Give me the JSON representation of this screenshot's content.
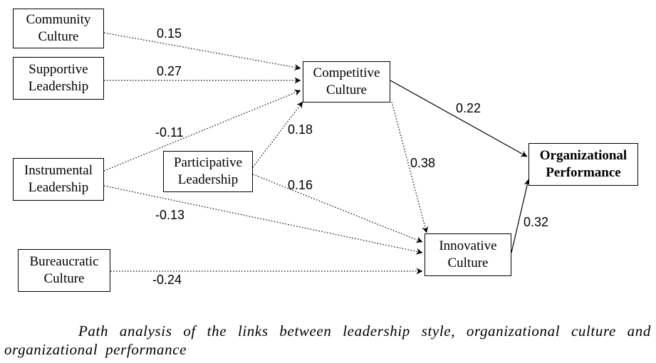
{
  "nodes": {
    "community_culture": "Community\nCulture",
    "supportive_leadership": "Supportive\nLeadership",
    "instrumental_leadership": "Instrumental\nLeadership",
    "bureaucratic_culture": "Bureaucratic\nCulture",
    "participative_leadership": "Participative\nLeadership",
    "competitive_culture": "Competitive\nCulture",
    "innovative_culture": "Innovative\nCulture",
    "organizational_performance": "Organizational\nPerformance"
  },
  "paths": [
    {
      "from": "Community Culture",
      "to": "Competitive Culture",
      "coefficient": "0.15",
      "line": "dotted"
    },
    {
      "from": "Supportive Leadership",
      "to": "Competitive Culture",
      "coefficient": "0.27",
      "line": "dotted"
    },
    {
      "from": "Instrumental Leadership",
      "to": "Competitive Culture",
      "coefficient": "-0.11",
      "line": "dotted"
    },
    {
      "from": "Participative Leadership",
      "to": "Competitive Culture",
      "coefficient": "0.18",
      "line": "dotted"
    },
    {
      "from": "Participative Leadership",
      "to": "Innovative Culture",
      "coefficient": "0.16",
      "line": "dotted"
    },
    {
      "from": "Instrumental Leadership",
      "to": "Innovative Culture",
      "coefficient": "-0.13",
      "line": "dotted"
    },
    {
      "from": "Bureaucratic Culture",
      "to": "Innovative Culture",
      "coefficient": "-0.24",
      "line": "dotted"
    },
    {
      "from": "Competitive Culture",
      "to": "Innovative Culture",
      "coefficient": "0.38",
      "line": "dotted"
    },
    {
      "from": "Competitive Culture",
      "to": "Organizational Performance",
      "coefficient": "0.22",
      "line": "solid"
    },
    {
      "from": "Innovative Culture",
      "to": "Organizational Performance",
      "coefficient": "0.32",
      "line": "solid"
    }
  ],
  "caption": "Path analysis of the links between leadership style, organizational culture and organizational performance"
}
